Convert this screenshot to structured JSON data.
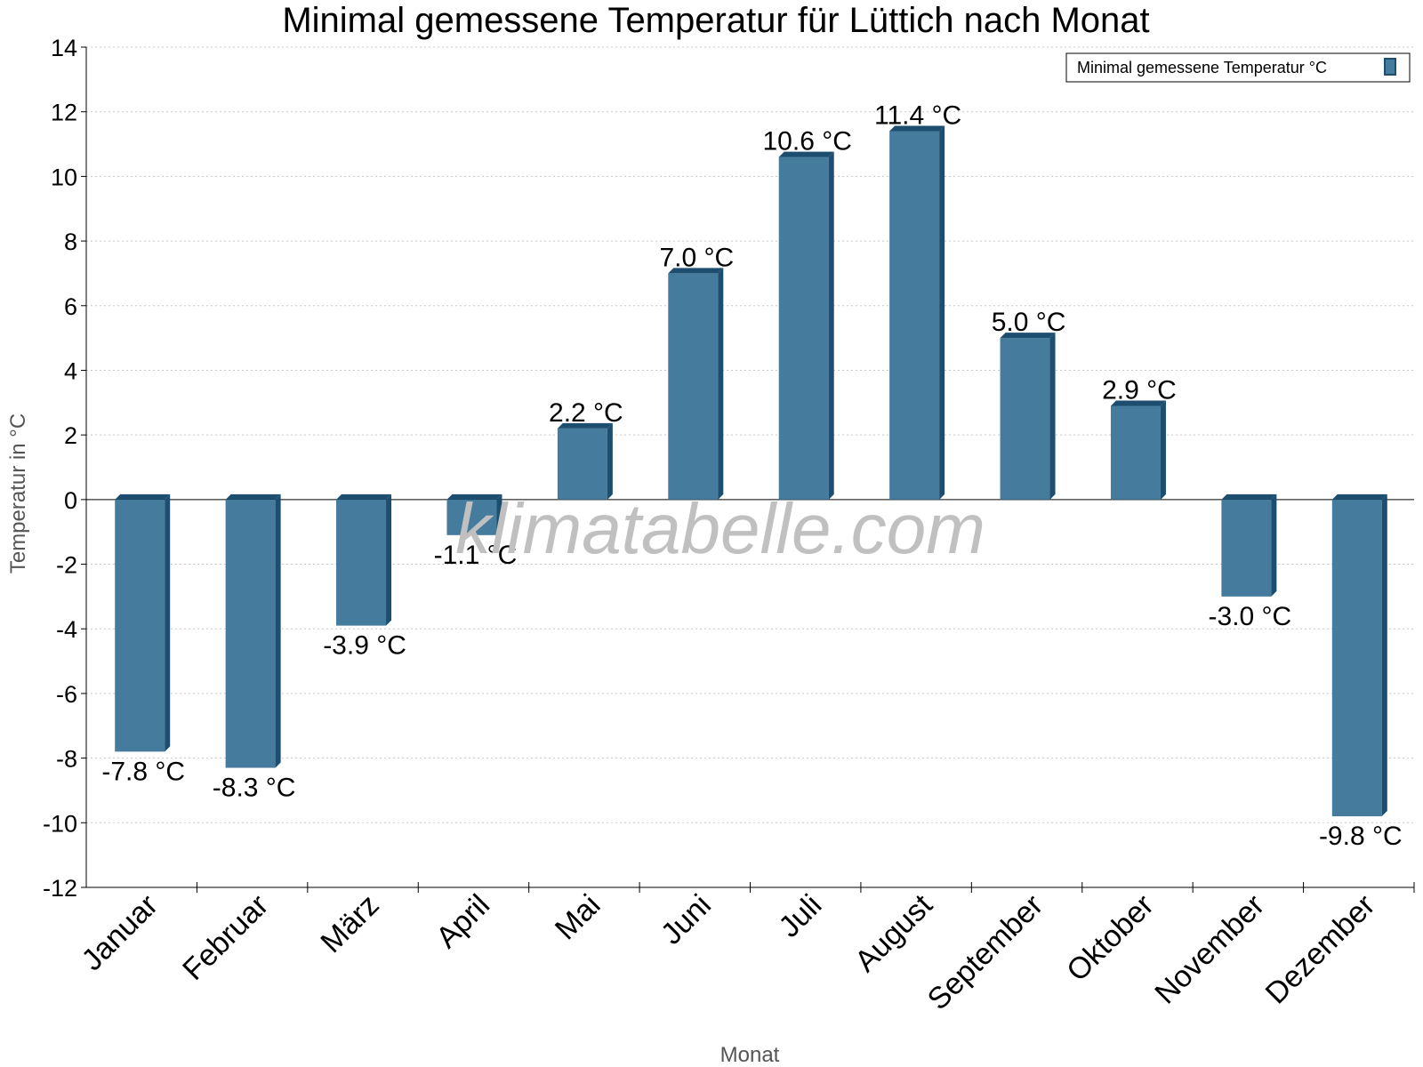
{
  "chart_data": {
    "type": "bar",
    "title": "Minimal gemessene Temperatur für Lüttich nach Monat",
    "xlabel": "Monat",
    "ylabel": "Temperatur in °C",
    "categories": [
      "Januar",
      "Februar",
      "März",
      "April",
      "Mai",
      "Juni",
      "Juli",
      "August",
      "September",
      "Oktober",
      "November",
      "Dezember"
    ],
    "series": [
      {
        "name": "Minimal gemessene Temperatur °C",
        "values": [
          -7.8,
          -8.3,
          -3.9,
          -1.1,
          2.2,
          7.0,
          10.6,
          11.4,
          5.0,
          2.9,
          -3.0,
          -9.8
        ],
        "labels": [
          "-7.8 °C",
          "-8.3 °C",
          "-3.9 °C",
          "-1.1 °C",
          "2.2 °C",
          "7.0 °C",
          "10.6 °C",
          "11.4 °C",
          "5.0 °C",
          "2.9 °C",
          "-3.0 °C",
          "-9.8 °C"
        ],
        "color": "#457b9d",
        "side_color": "#1d4e70"
      }
    ],
    "ylim": [
      -12,
      14
    ],
    "yticks": [
      14,
      12,
      10,
      8,
      6,
      4,
      2,
      0,
      -2,
      -4,
      -6,
      -8,
      -10,
      -12
    ],
    "grid": true,
    "legend_position": "top-right"
  },
  "watermark": "klimatabelle.com"
}
